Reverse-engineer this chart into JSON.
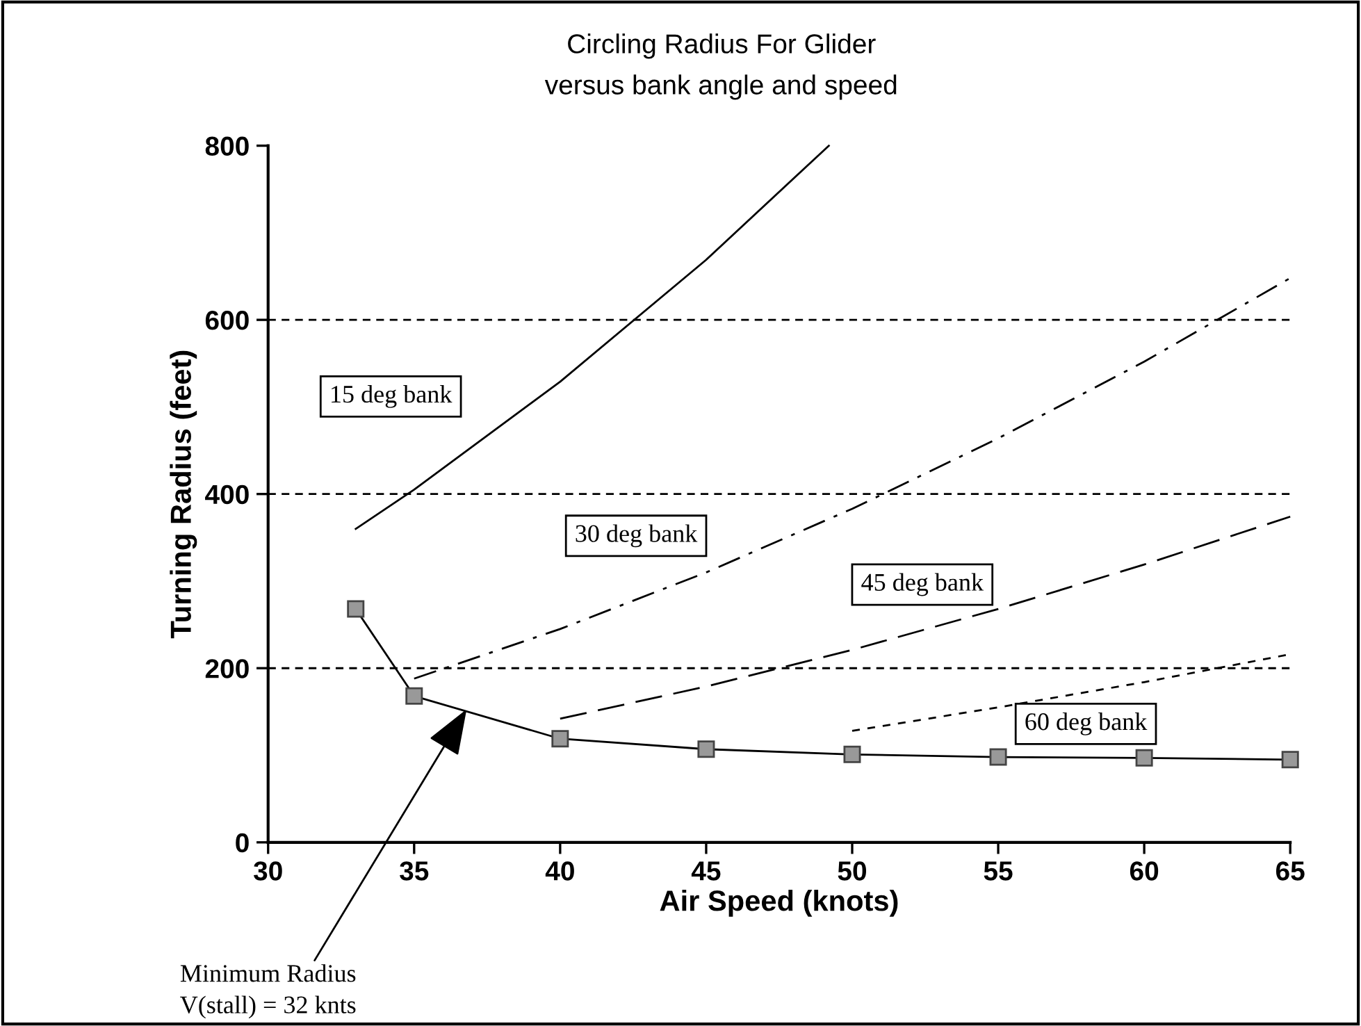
{
  "chart_data": {
    "type": "line",
    "title": "Circling Radius For Glider",
    "subtitle": "versus bank angle and speed",
    "xlabel": "Air Speed (knots)",
    "ylabel": "Turning Radius (feet)",
    "xlim": [
      30,
      65
    ],
    "xticks": [
      30,
      35,
      40,
      45,
      50,
      55,
      60,
      65
    ],
    "ylim": [
      0,
      800
    ],
    "yticks": [
      0,
      200,
      400,
      600,
      800
    ],
    "grid": "y",
    "legend": false,
    "series": [
      {
        "name": "15 deg bank",
        "color": "#000000",
        "line_style": "solid",
        "x": [
          33,
          35,
          40,
          45,
          49.2
        ],
        "values": [
          360,
          405,
          529,
          669,
          800
        ]
      },
      {
        "name": "30 deg bank",
        "color": "#000000",
        "line_style": "dashdot",
        "x": [
          35,
          40,
          45,
          50,
          55,
          60,
          65
        ],
        "values": [
          188,
          245,
          310,
          383,
          464,
          552,
          648
        ]
      },
      {
        "name": "45 deg bank",
        "color": "#000000",
        "line_style": "dashed",
        "x": [
          40,
          45,
          50,
          55,
          60,
          65
        ],
        "values": [
          142,
          179,
          221,
          268,
          319,
          374
        ]
      },
      {
        "name": "60 deg bank",
        "color": "#000000",
        "line_style": "dotted",
        "x": [
          50,
          55,
          60,
          65
        ],
        "values": [
          128,
          155,
          184,
          216
        ]
      },
      {
        "color": "#000000",
        "line_style": "solid",
        "marker": "square",
        "x": [
          33,
          35,
          40,
          45,
          50,
          55,
          60,
          65
        ],
        "values": [
          268,
          168,
          119,
          107,
          101,
          98,
          97,
          95
        ]
      }
    ],
    "annotations": [
      {
        "text": "Minimum Radius\nV(stall) = 32 knts",
        "x": 36.8,
        "y": 153
      }
    ]
  }
}
